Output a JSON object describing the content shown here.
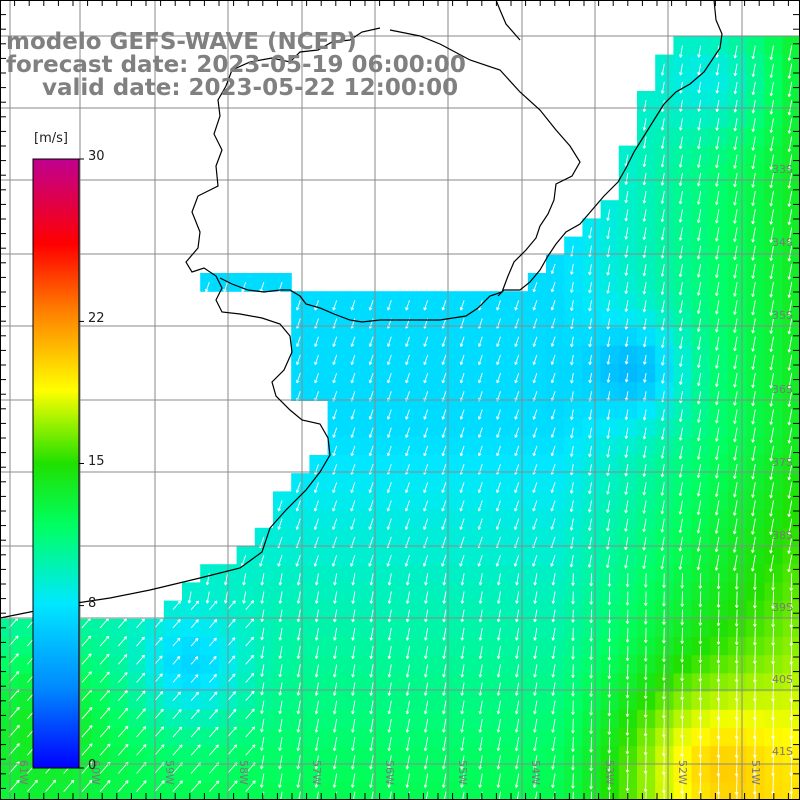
{
  "title": {
    "model": "modelo GEFS-WAVE (NCEP)",
    "forecast": "forecast date: 2023-05-19 06:00:00",
    "valid": "valid date: 2023-05-22 12:00:00"
  },
  "colorbar": {
    "unit": "[m/s]",
    "min": 0,
    "max": 30,
    "ticks": [
      {
        "value": 30,
        "label": "30"
      },
      {
        "value": 22,
        "label": "22"
      },
      {
        "value": 15,
        "label": "15"
      },
      {
        "value": 8,
        "label": "8"
      },
      {
        "value": 0,
        "label": "0"
      }
    ],
    "colors": [
      "#0000ff",
      "#0088ff",
      "#00e8ff",
      "#00ff60",
      "#20e000",
      "#ffff00",
      "#ff8000",
      "#ff0000",
      "#c00090"
    ]
  },
  "latitude_labels": [
    "33S",
    "34S",
    "35S",
    "36S",
    "37S",
    "38S",
    "39S",
    "40S",
    "41S"
  ],
  "longitude_labels": [
    "61W",
    "60W",
    "59W",
    "58W",
    "57W",
    "56W",
    "55W",
    "54W",
    "53W",
    "52W",
    "51W"
  ],
  "colors": {
    "title": "#808080",
    "land": "#ffffff",
    "grid": "#808080",
    "coast": "#000000",
    "arrow": "#ffffff"
  }
}
